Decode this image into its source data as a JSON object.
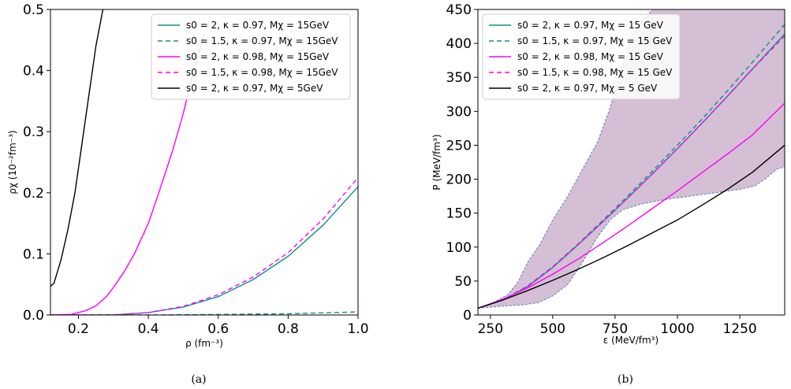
{
  "colors": {
    "teal": "#138c8c",
    "magenta": "#ff00ff",
    "black": "#000000",
    "band_fill": "#a070a0",
    "band_edge": "#5b7fbf"
  },
  "captions": [
    "(a)",
    "(b)"
  ],
  "chart_data": [
    {
      "type": "line",
      "caption": "(a)",
      "xlabel": "ρ (fm⁻³)",
      "ylabel": "ρχ (10⁻²fm⁻³)",
      "xlim": [
        0.12,
        1.0
      ],
      "ylim": [
        0,
        0.5
      ],
      "xticks": [
        0.2,
        0.4,
        0.6,
        0.8,
        1.0
      ],
      "xtick_labels": [
        "0.2",
        "0.4",
        "0.6",
        "0.8",
        "1.0"
      ],
      "yticks": [
        0.0,
        0.1,
        0.2,
        0.3,
        0.4,
        0.5
      ],
      "ytick_labels": [
        "0.0",
        "0.1",
        "0.2",
        "0.3",
        "0.4",
        "0.5"
      ],
      "grid": false,
      "legend_position": "top-right",
      "series": [
        {
          "name": "s0 = 2, κ = 0.97, Mχ = 15GeV",
          "color": "#138c8c",
          "dash": "solid",
          "x": [
            0.12,
            0.3,
            0.4,
            0.5,
            0.6,
            0.7,
            0.8,
            0.9,
            1.0
          ],
          "y": [
            0.0,
            0.0,
            0.004,
            0.013,
            0.03,
            0.058,
            0.096,
            0.147,
            0.21
          ]
        },
        {
          "name": "s0 = 1.5, κ = 0.97, Mχ = 15GeV",
          "color": "#138c8c",
          "dash": "dashed",
          "x": [
            0.12,
            0.4,
            0.6,
            0.8,
            1.0
          ],
          "y": [
            0.0,
            0.0,
            0.0008,
            0.002,
            0.005
          ]
        },
        {
          "name": "s0 = 2, κ = 0.98, Mχ = 15GeV",
          "color": "#ff00ff",
          "dash": "solid",
          "x": [
            0.12,
            0.18,
            0.22,
            0.25,
            0.28,
            0.3,
            0.33,
            0.36,
            0.4,
            0.43,
            0.47,
            0.5,
            0.53,
            0.56
          ],
          "y": [
            0.0,
            0.001,
            0.007,
            0.015,
            0.03,
            0.045,
            0.07,
            0.1,
            0.15,
            0.2,
            0.27,
            0.33,
            0.4,
            0.46
          ]
        },
        {
          "name": "s0 = 1.5, κ = 0.98, Mχ = 15GeV",
          "color": "#ff00ff",
          "dash": "dashed",
          "x": [
            0.12,
            0.3,
            0.4,
            0.5,
            0.6,
            0.7,
            0.8,
            0.9,
            1.0
          ],
          "y": [
            0.0,
            0.0,
            0.004,
            0.014,
            0.033,
            0.062,
            0.102,
            0.157,
            0.225
          ]
        },
        {
          "name": "s0 = 2, κ = 0.97, Mχ = 5GeV",
          "color": "#000000",
          "dash": "solid",
          "x": [
            0.12,
            0.13,
            0.15,
            0.17,
            0.19,
            0.21,
            0.23,
            0.25,
            0.27
          ],
          "y": [
            0.047,
            0.052,
            0.09,
            0.14,
            0.2,
            0.28,
            0.36,
            0.44,
            0.5
          ]
        }
      ]
    },
    {
      "type": "line",
      "caption": "(b)",
      "xlabel": "ε (MeV/fm³)",
      "ylabel": "P (MeV/fm³)",
      "xlim": [
        200,
        1430
      ],
      "ylim": [
        0,
        450
      ],
      "xticks": [
        250,
        500,
        750,
        1000,
        1250
      ],
      "xtick_labels": [
        "250",
        "500",
        "750",
        "1000",
        "1250"
      ],
      "yticks": [
        0,
        50,
        100,
        150,
        200,
        250,
        300,
        350,
        400,
        450
      ],
      "ytick_labels": [
        "0",
        "50",
        "100",
        "150",
        "200",
        "250",
        "300",
        "350",
        "400",
        "450"
      ],
      "grid": false,
      "legend_position": "top-left",
      "band": {
        "upper": {
          "x": [
            200,
            260,
            320,
            360,
            400,
            450,
            500,
            560,
            620,
            680,
            730,
            770,
            830,
            900
          ],
          "y": [
            10,
            18,
            30,
            48,
            78,
            105,
            140,
            175,
            215,
            255,
            305,
            360,
            420,
            450
          ]
        },
        "lower": {
          "x": [
            200,
            300,
            380,
            440,
            500,
            560,
            620,
            680,
            730,
            780,
            850,
            950,
            1050,
            1150,
            1250,
            1310,
            1350,
            1400,
            1430
          ],
          "y": [
            10,
            13,
            15,
            18,
            28,
            45,
            78,
            115,
            140,
            155,
            163,
            170,
            175,
            180,
            185,
            190,
            200,
            215,
            218
          ]
        }
      },
      "series": [
        {
          "name": "s0 = 2, κ = 0.97, Mχ = 15 GeV",
          "color": "#138c8c",
          "dash": "solid",
          "x": [
            200,
            300,
            400,
            500,
            600,
            700,
            800,
            900,
            1000,
            1100,
            1200,
            1300,
            1430
          ],
          "y": [
            10,
            22,
            42,
            70,
            103,
            137,
            172,
            208,
            245,
            283,
            322,
            362,
            414
          ]
        },
        {
          "name": "s0 = 1.5, κ = 0.97, Mχ = 15 GeV",
          "color": "#138c8c",
          "dash": "dashed",
          "x": [
            200,
            300,
            400,
            500,
            600,
            700,
            800,
            900,
            1000,
            1100,
            1200,
            1300,
            1430
          ],
          "y": [
            10,
            22,
            43,
            71,
            104,
            139,
            175,
            212,
            250,
            289,
            330,
            372,
            428
          ]
        },
        {
          "name": "s0 = 2, κ = 0.98, Mχ = 15 GeV",
          "color": "#ff00ff",
          "dash": "solid",
          "x": [
            200,
            300,
            400,
            500,
            600,
            700,
            800,
            900,
            1000,
            1100,
            1200,
            1300,
            1430
          ],
          "y": [
            10,
            23,
            40,
            60,
            82,
            106,
            131,
            157,
            183,
            210,
            237,
            265,
            312
          ]
        },
        {
          "name": "s0 = 1.5, κ = 0.98, Mχ = 15 GeV",
          "color": "#ff00ff",
          "dash": "dashed",
          "x": [
            200,
            300,
            400,
            500,
            600,
            700,
            800,
            900,
            1000,
            1100,
            1200,
            1300,
            1430
          ],
          "y": [
            10,
            22,
            42,
            70,
            103,
            137,
            172,
            208,
            245,
            283,
            322,
            362,
            411
          ]
        },
        {
          "name": "s0 = 2, κ = 0.97, Mχ = 5 GeV",
          "color": "#000000",
          "dash": "solid",
          "x": [
            200,
            300,
            400,
            500,
            600,
            700,
            800,
            900,
            1000,
            1100,
            1200,
            1300,
            1430
          ],
          "y": [
            10,
            22,
            36,
            51,
            67,
            84,
            102,
            121,
            140,
            162,
            185,
            210,
            250
          ]
        }
      ]
    }
  ]
}
